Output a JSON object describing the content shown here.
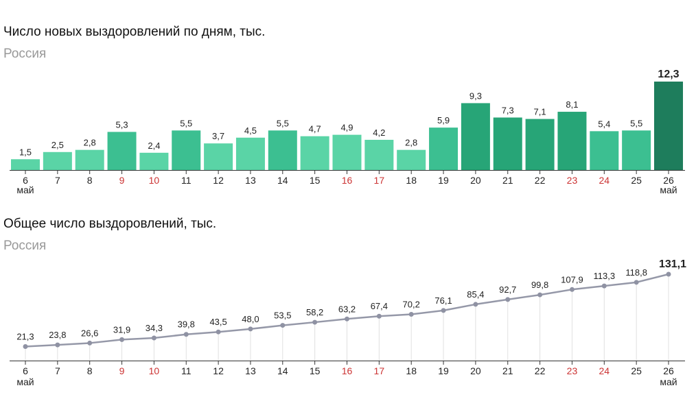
{
  "chart_data": [
    {
      "type": "bar",
      "title": "Число новых выздоровлений по дням, тыс.",
      "subtitle": "Россия",
      "categories": [
        "6",
        "7",
        "8",
        "9",
        "10",
        "11",
        "12",
        "13",
        "14",
        "15",
        "16",
        "17",
        "18",
        "19",
        "20",
        "21",
        "22",
        "23",
        "24",
        "25",
        "26"
      ],
      "month_label": "май",
      "values": [
        1.5,
        2.5,
        2.8,
        5.3,
        2.4,
        5.5,
        3.7,
        4.5,
        5.5,
        4.7,
        4.9,
        4.2,
        2.8,
        5.9,
        9.3,
        7.3,
        7.1,
        8.1,
        5.4,
        5.5,
        12.3
      ],
      "value_labels": [
        "1,5",
        "2,5",
        "2,8",
        "5,3",
        "2,4",
        "5,5",
        "3,7",
        "4,5",
        "5,5",
        "4,7",
        "4,9",
        "4,2",
        "2,8",
        "5,9",
        "9,3",
        "7,3",
        "7,1",
        "8,1",
        "5,4",
        "5,5",
        "12,3"
      ],
      "weekend_days": [
        "9",
        "10",
        "16",
        "17",
        "23",
        "24"
      ],
      "ylim": [
        0,
        12.3
      ],
      "grid": false
    },
    {
      "type": "line",
      "title": "Общее число выздоровлений, тыс.",
      "subtitle": "Россия",
      "categories": [
        "6",
        "7",
        "8",
        "9",
        "10",
        "11",
        "12",
        "13",
        "14",
        "15",
        "16",
        "17",
        "18",
        "19",
        "20",
        "21",
        "22",
        "23",
        "24",
        "25",
        "26"
      ],
      "month_label": "май",
      "values": [
        21.3,
        23.8,
        26.6,
        31.9,
        34.3,
        39.8,
        43.5,
        48.0,
        53.5,
        58.2,
        63.2,
        67.4,
        70.2,
        76.1,
        85.4,
        92.7,
        99.8,
        107.9,
        113.3,
        118.8,
        131.1
      ],
      "value_labels": [
        "21,3",
        "23,8",
        "26,6",
        "31,9",
        "34,3",
        "39,8",
        "43,5",
        "48,0",
        "53,5",
        "58,2",
        "63,2",
        "67,4",
        "70,2",
        "76,1",
        "85,4",
        "92,7",
        "99,8",
        "107,9",
        "113,3",
        "118,8",
        "131,1"
      ],
      "weekend_days": [
        "9",
        "10",
        "16",
        "17",
        "23",
        "24"
      ],
      "ylim": [
        0,
        131.1
      ],
      "grid": true
    }
  ],
  "colors": {
    "bar_low": "#5ad4a6",
    "bar_mid": "#3cbf91",
    "bar_high": "#27a577",
    "bar_top": "#1e7d5c",
    "line": "#9598a8",
    "point": "#8f92a3",
    "grid": "#e0e0e0",
    "axis": "#333333",
    "weekend_text": "#cc3333",
    "text": "#222222"
  }
}
